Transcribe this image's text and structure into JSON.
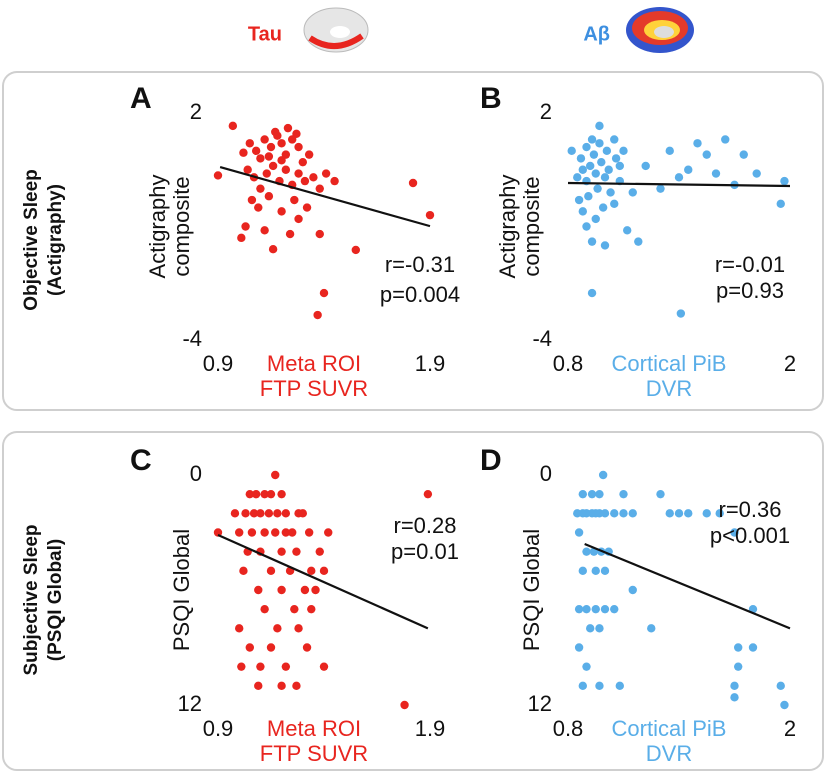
{
  "columns": [
    "Tau",
    "Aβ"
  ],
  "rows": [
    {
      "label": [
        "Objective Sleep",
        "(Actigraphy)"
      ]
    },
    {
      "label": [
        "Subjective Sleep",
        "(PSQI Global)"
      ]
    }
  ],
  "chart_data": [
    {
      "type": "scatter",
      "panel": "A",
      "color": "#e8251f",
      "xlabel": [
        "Meta ROI",
        "FTP SUVR"
      ],
      "ylabel": [
        "Actigraphy",
        "composite"
      ],
      "xlim": [
        0.9,
        1.9
      ],
      "xticks": [
        0.9,
        1.9
      ],
      "ylim": [
        -4,
        2
      ],
      "yticks": [
        -4,
        2
      ],
      "annotations": [
        "r=-0.31",
        "p=0.004"
      ],
      "fit": {
        "x": [
          0.91,
          1.9
        ],
        "y": [
          0.57,
          -0.99
        ]
      },
      "x": [
        0.97,
        0.9,
        1.02,
        1.05,
        1.08,
        1.1,
        1.12,
        1.15,
        1.18,
        1.2,
        1.22,
        1.25,
        1.28,
        1.3,
        1.33,
        1.04,
        1.07,
        1.1,
        1.13,
        1.16,
        1.19,
        1.22,
        1.25,
        1.28,
        1.31,
        1.35,
        1.38,
        1.41,
        1.45,
        1.06,
        1.09,
        1.14,
        1.2,
        1.26,
        1.32,
        1.03,
        1.01,
        1.16,
        1.12,
        1.28,
        1.24,
        1.38,
        1.55,
        1.82,
        1.9,
        1.4,
        1.37,
        1.17,
        1.23,
        1.27,
        1.14,
        1.2
      ],
      "values": [
        1.66,
        0.35,
        0.95,
        1.2,
        1.0,
        0.8,
        1.3,
        1.1,
        1.4,
        1.2,
        0.9,
        1.3,
        1.1,
        0.7,
        0.9,
        0.5,
        0.3,
        0.0,
        0.4,
        0.6,
        0.2,
        0.5,
        0.1,
        0.4,
        0.2,
        0.3,
        0.0,
        0.4,
        0.2,
        -0.3,
        -0.5,
        -0.2,
        -0.6,
        -0.3,
        -0.5,
        -1.0,
        -1.3,
        -1.6,
        -1.1,
        -0.8,
        -1.2,
        -1.2,
        -1.62,
        0.15,
        -0.7,
        -2.76,
        -3.34,
        1.5,
        1.6,
        1.45,
        0.85,
        0.75
      ]
    },
    {
      "type": "scatter",
      "panel": "B",
      "color": "#5aaee8",
      "xlabel": [
        "Cortical PiB",
        "DVR"
      ],
      "ylabel": [
        "Actigraphy",
        "composite"
      ],
      "xlim": [
        0.8,
        2
      ],
      "xticks": [
        0.8,
        2
      ],
      "ylim": [
        -4,
        2
      ],
      "yticks": [
        -4,
        2
      ],
      "annotations": [
        "r=-0.01",
        "p=0.93"
      ],
      "fit": {
        "x": [
          0.8,
          2
        ],
        "y": [
          0.15,
          0.07
        ]
      },
      "x": [
        0.97,
        0.82,
        0.85,
        0.87,
        0.88,
        0.9,
        0.9,
        0.91,
        0.92,
        0.93,
        0.94,
        0.95,
        0.96,
        0.97,
        0.98,
        0.99,
        1.0,
        1.01,
        1.02,
        1.03,
        1.05,
        1.06,
        1.08,
        1.1,
        0.88,
        0.9,
        0.93,
        0.86,
        0.95,
        1.0,
        1.12,
        1.18,
        1.05,
        1.22,
        1.3,
        1.35,
        1.4,
        1.45,
        1.5,
        1.55,
        1.6,
        1.65,
        1.7,
        1.75,
        1.82,
        1.95,
        1.97,
        0.93,
        1.41,
        1.15,
        1.08
      ],
      "values": [
        1.66,
        1.0,
        0.3,
        0.8,
        0.5,
        1.1,
        0.2,
        -0.2,
        0.6,
        1.3,
        0.9,
        0.4,
        0.0,
        1.2,
        0.7,
        -0.5,
        0.3,
        1.0,
        0.5,
        -0.1,
        1.3,
        0.8,
        0.2,
        1.0,
        -0.6,
        -1.0,
        -1.4,
        -0.3,
        -0.8,
        -1.5,
        -1.1,
        -1.4,
        -0.4,
        0.6,
        0.0,
        1.0,
        0.3,
        0.5,
        1.2,
        0.9,
        0.4,
        1.3,
        0.1,
        0.9,
        0.4,
        -0.4,
        0.2,
        -2.76,
        -3.3,
        -0.1,
        0.6
      ]
    },
    {
      "type": "scatter",
      "panel": "C",
      "color": "#e8251f",
      "xlabel": [
        "Meta ROI",
        "FTP SUVR"
      ],
      "ylabel": [
        "PSQI Global"
      ],
      "xlim": [
        0.9,
        1.9
      ],
      "xticks": [
        0.9,
        1.9
      ],
      "ylim": [
        12,
        0
      ],
      "yticks": [
        0,
        12
      ],
      "annotations": [
        "r=0.28",
        "p=0.01"
      ],
      "fit": {
        "x": [
          0.9,
          1.89
        ],
        "y": [
          3.13,
          8.0
        ]
      },
      "x": [
        1.17,
        1.89,
        1.78,
        1.09,
        0.9,
        1.05,
        1.08,
        1.12,
        1.15,
        1.2,
        0.98,
        1.03,
        1.07,
        1.1,
        1.14,
        1.18,
        1.22,
        1.28,
        1.3,
        1.0,
        1.06,
        1.12,
        1.17,
        1.22,
        1.25,
        1.33,
        1.42,
        1.04,
        1.1,
        1.2,
        1.27,
        1.38,
        1.02,
        1.15,
        1.24,
        1.34,
        1.4,
        1.09,
        1.2,
        1.31,
        1.36,
        1.12,
        1.26,
        1.34,
        1.0,
        1.18,
        1.28,
        1.05,
        1.15,
        1.32,
        1.1,
        1.22,
        1.4,
        1.01,
        1.2,
        1.27
      ],
      "values": [
        0,
        1,
        12,
        11,
        3,
        1,
        1,
        1,
        1,
        1,
        2,
        2,
        2,
        2,
        2,
        2,
        2,
        2,
        2,
        3,
        3,
        3,
        3,
        3,
        3,
        3,
        3,
        4,
        4,
        4,
        4,
        4,
        5,
        5,
        5,
        5,
        5,
        6,
        6,
        6,
        6,
        7,
        7,
        7,
        8,
        8,
        8,
        9,
        9,
        9,
        10,
        10,
        10,
        10,
        11,
        11
      ]
    },
    {
      "type": "scatter",
      "panel": "D",
      "color": "#5aaee8",
      "xlabel": [
        "Cortical PiB",
        "DVR"
      ],
      "ylabel": [
        "PSQI Global"
      ],
      "xlim": [
        0.8,
        2
      ],
      "xticks": [
        0.8,
        2
      ],
      "ylim": [
        12,
        0
      ],
      "yticks": [
        0,
        12
      ],
      "annotations": [
        "r=0.36",
        "p<0.001"
      ],
      "fit": {
        "x": [
          0.89,
          2
        ],
        "y": [
          3.6,
          8.0
        ]
      },
      "x": [
        0.99,
        1.97,
        0.88,
        0.93,
        0.97,
        1.1,
        1.3,
        0.85,
        0.88,
        0.9,
        0.93,
        0.95,
        0.97,
        1.0,
        1.05,
        1.1,
        1.15,
        1.35,
        1.4,
        1.45,
        1.55,
        1.62,
        1.7,
        0.86,
        0.9,
        0.94,
        0.98,
        1.02,
        0.88,
        0.95,
        1.0,
        0.86,
        0.9,
        0.95,
        1.0,
        1.05,
        1.8,
        0.92,
        0.97,
        1.25,
        0.86,
        1.72,
        1.8,
        0.9,
        1.72,
        0.88,
        0.97,
        1.08,
        1.7,
        1.95,
        1.7,
        1.15
      ],
      "values": [
        0,
        12,
        1,
        1,
        1,
        1,
        1,
        2,
        2,
        2,
        2,
        2,
        2,
        2,
        2,
        2,
        2,
        2,
        2,
        2,
        2,
        2,
        3,
        3,
        4,
        4,
        4,
        4,
        5,
        5,
        5,
        7,
        7,
        7,
        7,
        7,
        7,
        8,
        8,
        8,
        9,
        9,
        9,
        10,
        10,
        11,
        11,
        11,
        11,
        11,
        11.6,
        6
      ]
    }
  ]
}
